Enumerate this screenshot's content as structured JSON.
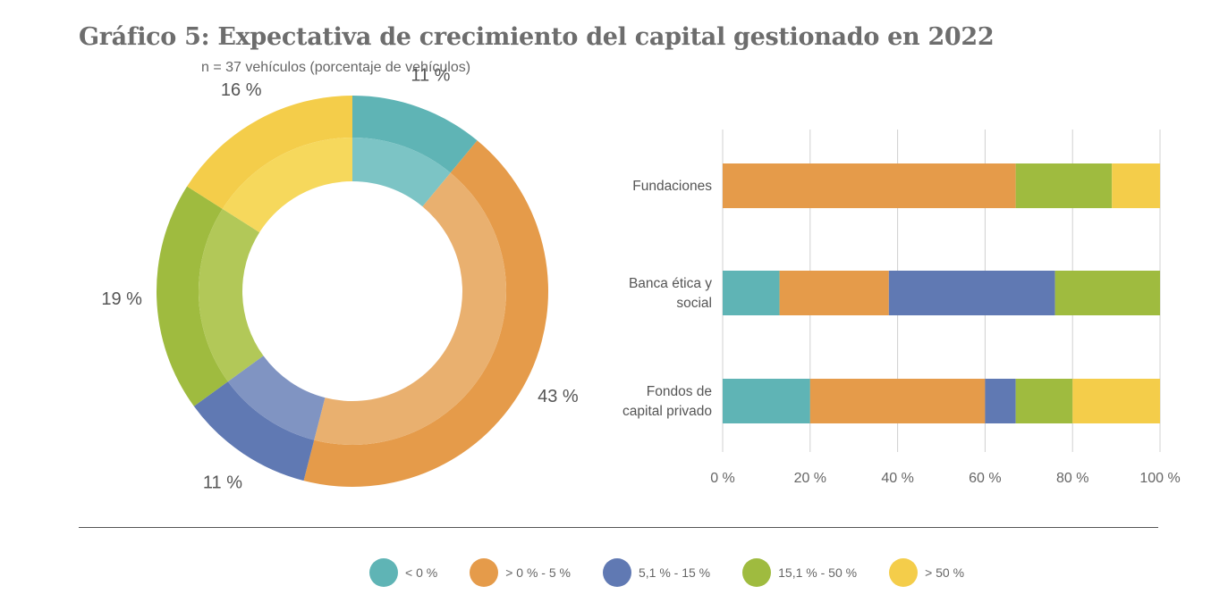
{
  "header": {
    "title": "Gráfico 5: Expectativa de crecimiento del capital gestionado en 2022",
    "subtitle": "n = 37 vehículos (porcentaje de vehículos)"
  },
  "chart_data": [
    {
      "type": "pie",
      "variant": "donut",
      "categories": [
        "< 0 %",
        "> 0 % - 5 %",
        "5,1 % - 15  %",
        "15,1 % - 50 %",
        "> 50 %"
      ],
      "values": [
        11,
        43,
        11,
        19,
        16
      ],
      "value_labels": [
        "11 %",
        "43 %",
        "11 %",
        "19 %",
        "16 %"
      ],
      "colors": [
        "#5fb4b5",
        "#e59b4a",
        "#6079b3",
        "#9fbb3f",
        "#f4cd4a"
      ],
      "inner_colors": [
        "#7cc4c5",
        "#e9b06f",
        "#8094c2",
        "#b2c858",
        "#f6d85c"
      ]
    },
    {
      "type": "bar",
      "orientation": "horizontal",
      "stacked": true,
      "categories": [
        "Fundaciones",
        "Banca ética y social",
        "Fondos de capital privado"
      ],
      "category_lines": [
        [
          "Fundaciones"
        ],
        [
          "Banca ética y",
          "social"
        ],
        [
          "Fondos de",
          "capital privado"
        ]
      ],
      "series": [
        {
          "name": "< 0 %",
          "color": "#5fb4b5",
          "values": [
            0,
            13,
            20
          ]
        },
        {
          "name": "> 0 % - 5 %",
          "color": "#e59b4a",
          "values": [
            67,
            25,
            40
          ]
        },
        {
          "name": "5,1 % - 15  %",
          "color": "#6079b3",
          "values": [
            0,
            38,
            7
          ]
        },
        {
          "name": "15,1 % - 50 %",
          "color": "#9fbb3f",
          "values": [
            22,
            24,
            13
          ]
        },
        {
          "name": "> 50 %",
          "color": "#f4cd4a",
          "values": [
            11,
            0,
            20
          ]
        }
      ],
      "xlim": [
        0,
        100
      ],
      "xticks": [
        0,
        20,
        40,
        60,
        80,
        100
      ],
      "xtick_labels": [
        "0 %",
        "20 %",
        "40 %",
        "60 %",
        "80 %",
        "100 %"
      ],
      "grid": true
    }
  ]
}
